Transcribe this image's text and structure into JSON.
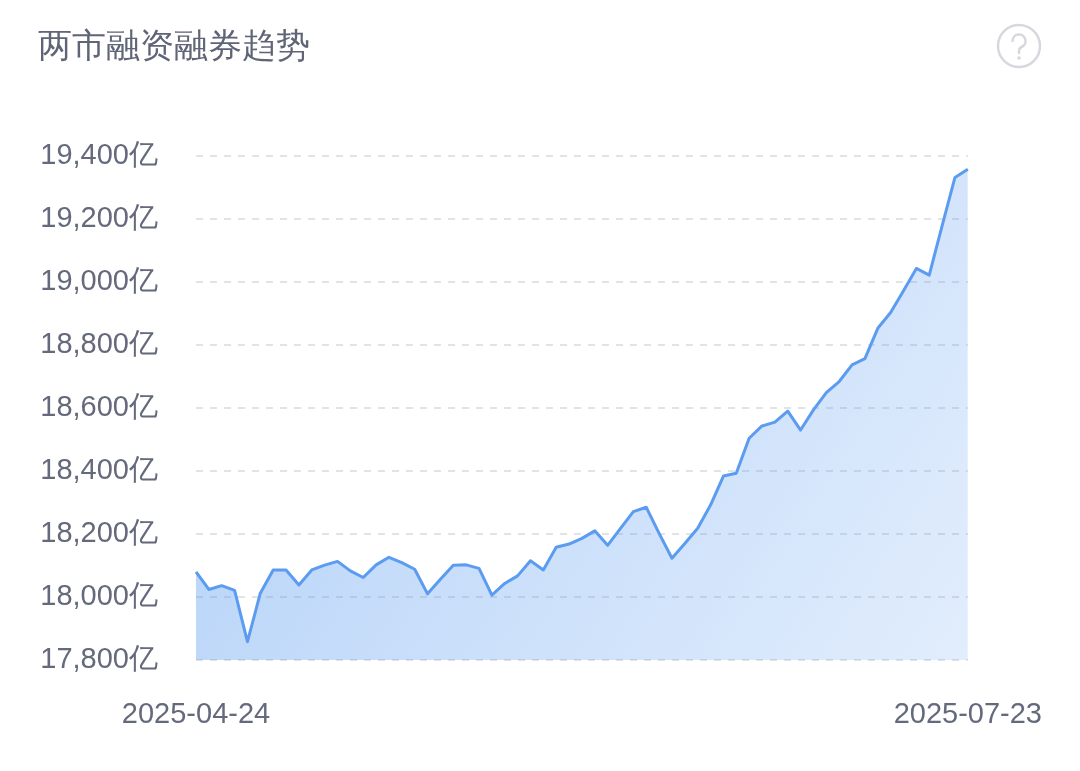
{
  "chart_data": {
    "type": "area",
    "title": "两市融资融券趋势",
    "categories": [
      "2025-04-24",
      null,
      null,
      null,
      null,
      null,
      null,
      null,
      null,
      null,
      null,
      null,
      null,
      null,
      null,
      null,
      null,
      null,
      null,
      null,
      null,
      null,
      null,
      null,
      null,
      null,
      null,
      null,
      null,
      null,
      null,
      null,
      null,
      null,
      null,
      null,
      null,
      null,
      null,
      null,
      null,
      null,
      null,
      null,
      null,
      null,
      null,
      null,
      null,
      null,
      null,
      null,
      null,
      null,
      null,
      null,
      null,
      null,
      null,
      null,
      "2025-07-23"
    ],
    "values": [
      18080,
      18024,
      18036,
      18021,
      17858,
      18012,
      18086,
      18086,
      18038,
      18086,
      18101,
      18113,
      18083,
      18062,
      18102,
      18126,
      18109,
      18088,
      18010,
      18056,
      18101,
      18102,
      18091,
      18006,
      18043,
      18067,
      18115,
      18086,
      18158,
      18168,
      18186,
      18210,
      18164,
      18218,
      18271,
      18285,
      18202,
      18123,
      18170,
      18218,
      18292,
      18384,
      18393,
      18504,
      18543,
      18555,
      18590,
      18530,
      18594,
      18649,
      18684,
      18737,
      18757,
      18853,
      18903,
      18972,
      19043,
      19022,
      19178,
      19332,
      19358
    ],
    "color": "#5b9cf0",
    "ylim": [
      17800,
      19400
    ],
    "yticks": [
      {
        "value": 17800,
        "label": "17,800亿"
      },
      {
        "value": 18000,
        "label": "18,000亿"
      },
      {
        "value": 18200,
        "label": "18,200亿"
      },
      {
        "value": 18400,
        "label": "18,400亿"
      },
      {
        "value": 18600,
        "label": "18,600亿"
      },
      {
        "value": 18800,
        "label": "18,800亿"
      },
      {
        "value": 19000,
        "label": "19,000亿"
      },
      {
        "value": 19200,
        "label": "19,200亿"
      },
      {
        "value": 19400,
        "label": "19,400亿"
      }
    ],
    "grid": "y",
    "legend": false,
    "marker": "none",
    "line_style": "solid"
  }
}
